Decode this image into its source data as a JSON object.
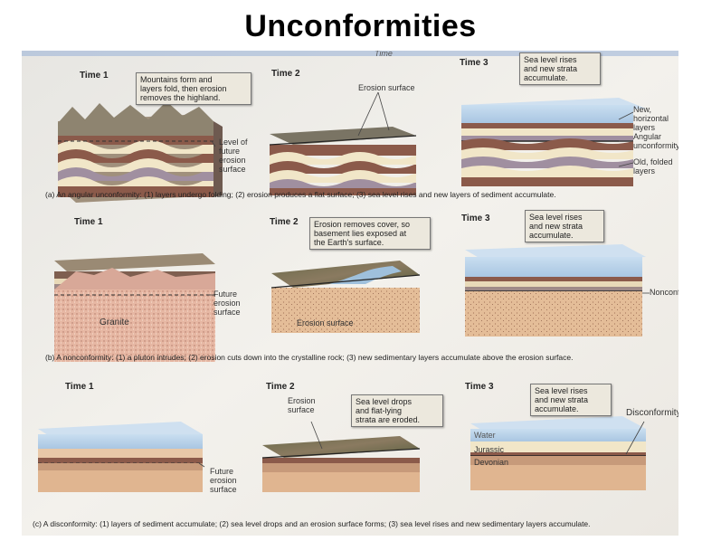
{
  "title": "Unconformities",
  "header_word": "Time",
  "colors": {
    "sea": "#b9d3ea",
    "brown": "#8b5a4a",
    "cream": "#f1e6c8",
    "mauve": "#a08fa0",
    "tan": "#e2b994",
    "page": "#f4f1ea"
  },
  "panel_a": {
    "time1": "Time 1",
    "time2": "Time 2",
    "time3": "Time 3",
    "callout1": "Mountains form and\nlayers fold, then erosion\nremoves the highland.",
    "label_future": "Level of\nfuture\nerosion\nsurface",
    "label_erosion": "Erosion surface",
    "callout3": "Sea level rises\nand new strata\naccumulate.",
    "label_new": "New, horizontal\nlayers",
    "label_angular": "Angular\nunconformity",
    "label_old": "Old, folded\nlayers",
    "caption": "(a)  An angular unconformity: (1) layers undergo folding; (2) erosion produces a flat surface; (3) sea level rises and new layers of sediment accumulate."
  },
  "panel_b": {
    "time1": "Time 1",
    "time2": "Time 2",
    "time3": "Time 3",
    "label_granite": "Granite",
    "label_future": "Future\nerosion\nsurface",
    "callout2": "Erosion removes cover, so\nbasement lies exposed at\nthe Earth's surface.",
    "label_erosion": "Erosion surface",
    "callout3": "Sea level rises\nand new strata\naccumulate.",
    "label_noncon": "Nonconformity",
    "caption": "(b)  A nonconformity: (1) a pluton intrudes; (2) erosion cuts down into the crystalline rock; (3) new sedimentary layers accumulate above the erosion surface."
  },
  "panel_c": {
    "time1": "Time 1",
    "time2": "Time 2",
    "time3": "Time 3",
    "label_future": "Future\nerosion\nsurface",
    "label_erosion": "Erosion\nsurface",
    "callout2": "Sea level drops\nand flat-lying\nstrata are eroded.",
    "callout3": "Sea level rises\nand new strata\naccumulate.",
    "label_discon": "Disconformity",
    "label_water": "Water",
    "label_jurassic": "Jurassic",
    "label_devonian": "Devonian",
    "caption": "(c)  A disconformity: (1) layers of sediment accumulate; (2) sea level drops and an erosion surface forms; (3) sea level rises and new sedimentary layers accumulate."
  }
}
